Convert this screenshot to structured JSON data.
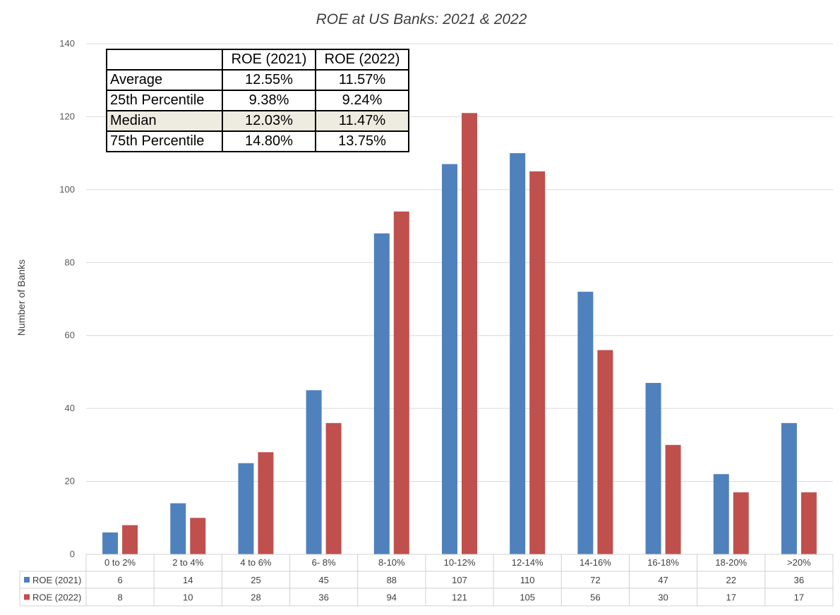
{
  "chart_data": {
    "type": "bar",
    "title": "ROE at US Banks: 2021 & 2022",
    "ylabel": "Number of Banks",
    "xlabel": "",
    "ylim": [
      0,
      140
    ],
    "yticks": [
      0,
      20,
      40,
      60,
      80,
      100,
      120,
      140
    ],
    "grid": true,
    "legend": "data-table-below",
    "categories": [
      "0 to 2%",
      "2 to 4%",
      "4 to 6%",
      "6- 8%",
      "8-10%",
      "10-12%",
      "12-14%",
      "14-16%",
      "16-18%",
      "18-20%",
      ">20%"
    ],
    "series": [
      {
        "name": "ROE (2021)",
        "color": "#4f81bd",
        "values": [
          6,
          14,
          25,
          45,
          88,
          107,
          110,
          72,
          47,
          22,
          36
        ]
      },
      {
        "name": "ROE (2022)",
        "color": "#c0504d",
        "values": [
          8,
          10,
          28,
          36,
          94,
          121,
          105,
          56,
          30,
          17,
          17
        ]
      }
    ]
  },
  "stats_table": {
    "headers": [
      "",
      "ROE (2021)",
      "ROE (2022)"
    ],
    "rows": [
      {
        "label": "Average",
        "v2021": "12.55%",
        "v2022": "11.57%",
        "highlight": false
      },
      {
        "label": "25th Percentile",
        "v2021": "9.38%",
        "v2022": "9.24%",
        "highlight": false
      },
      {
        "label": "Median",
        "v2021": "12.03%",
        "v2022": "11.47%",
        "highlight": true
      },
      {
        "label": "75th Percentile",
        "v2021": "14.80%",
        "v2022": "13.75%",
        "highlight": false
      }
    ]
  }
}
